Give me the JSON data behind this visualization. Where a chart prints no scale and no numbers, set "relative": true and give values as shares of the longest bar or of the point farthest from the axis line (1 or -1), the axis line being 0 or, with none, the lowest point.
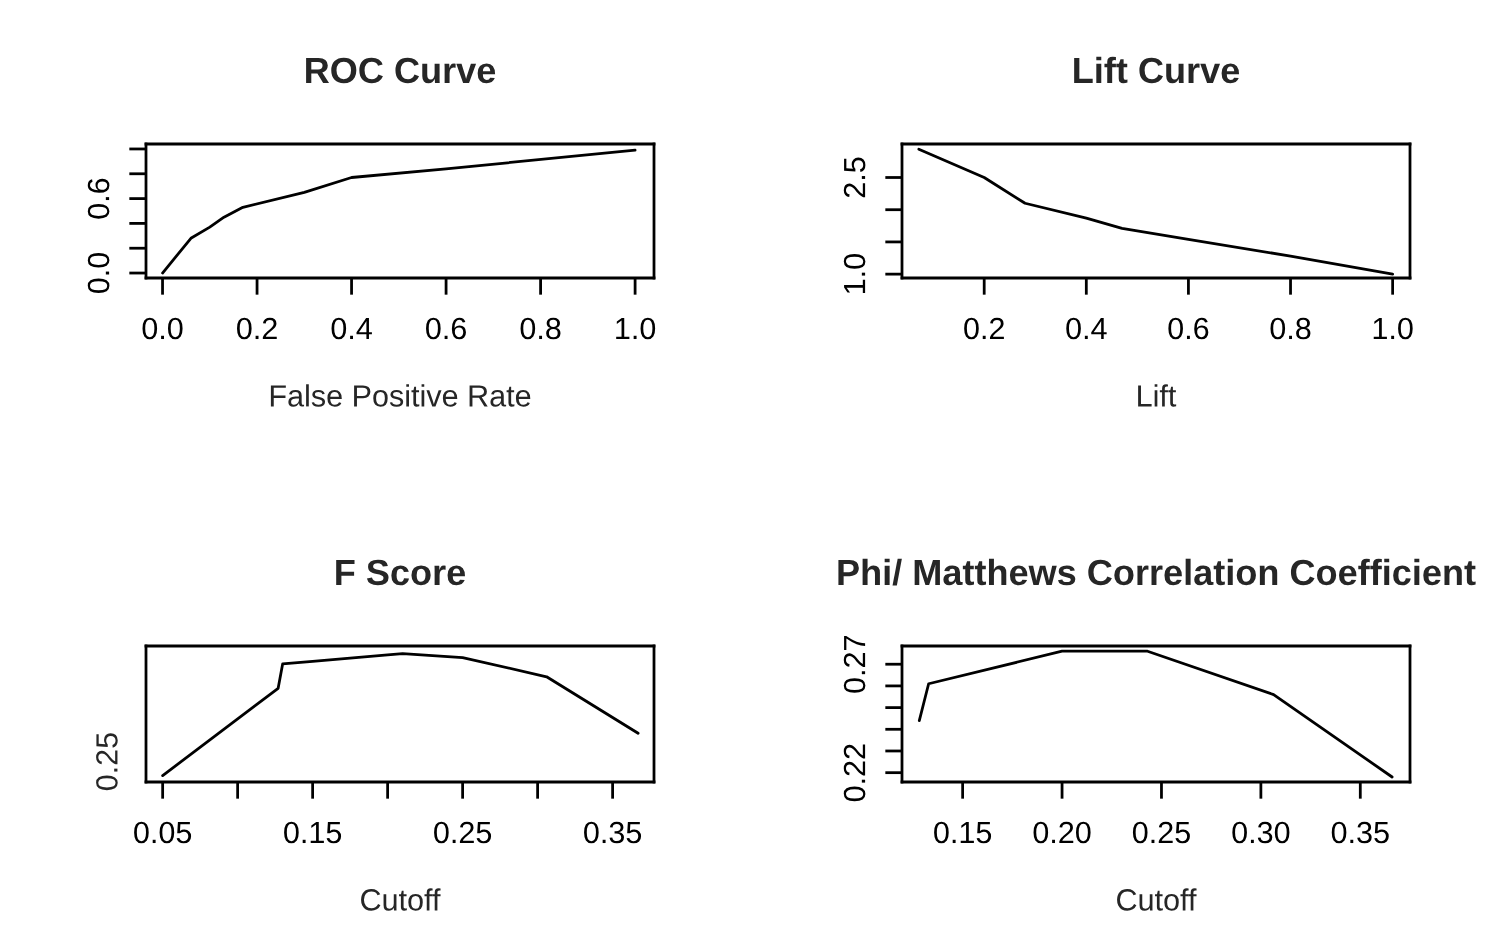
{
  "chart_data": [
    {
      "type": "line",
      "title": "ROC Curve",
      "xlabel": "False Positive Rate",
      "color": "#000000",
      "x": [
        0,
        0.06,
        0.1,
        0.13,
        0.17,
        0.3,
        0.4,
        0.6,
        1.0
      ],
      "values": [
        0,
        0.28,
        0.37,
        0.45,
        0.53,
        0.65,
        0.77,
        0.84,
        0.99
      ],
      "xlim": [
        -0.035,
        1.04
      ],
      "ylim": [
        -0.04,
        1.04
      ],
      "xticks": [
        {
          "value": 0,
          "label": "0.0"
        },
        0.2,
        0.4,
        0.6,
        0.8,
        {
          "value": 1,
          "label": "1.0"
        }
      ],
      "yticks": [
        {
          "value": 0,
          "label": "0.0"
        },
        {
          "value": 0.2,
          "label": null
        },
        {
          "value": 0.4,
          "label": null
        },
        0.6,
        {
          "value": 0.8,
          "label": null
        },
        {
          "value": 1,
          "label": null
        }
      ]
    },
    {
      "type": "line",
      "title": "Lift Curve",
      "xlabel": "Lift",
      "color": "#000000",
      "x": [
        0.072,
        0.2,
        0.28,
        0.4,
        0.47,
        0.6,
        0.8,
        1.0
      ],
      "values": [
        2.94,
        2.5,
        2.1,
        1.87,
        1.71,
        1.54,
        1.28,
        1.0
      ],
      "xlim": [
        0.039,
        1.034
      ],
      "ylim": [
        0.94,
        3.02
      ],
      "xticks": [
        0.2,
        0.4,
        0.6,
        0.8,
        {
          "value": 1,
          "label": "1.0"
        }
      ],
      "yticks": [
        {
          "value": 1,
          "label": "1.0"
        },
        {
          "value": 1.5,
          "label": null
        },
        {
          "value": 2,
          "label": null
        },
        2.5
      ]
    },
    {
      "type": "line",
      "title": "F Score",
      "xlabel": "Cutoff",
      "color": "#000000",
      "x": [
        0.05,
        0.127,
        0.13,
        0.15,
        0.2,
        0.21,
        0.25,
        0.306,
        0.367
      ],
      "values": [
        0.05,
        0.73,
        0.92,
        0.94,
        0.99,
        1,
        0.97,
        0.82,
        0.38
      ],
      "relative": true,
      "annotations": [
        "0.25"
      ],
      "xlim": [
        0.0389,
        0.3776
      ],
      "xticks": [
        0.05,
        {
          "value": 0.1,
          "label": null
        },
        0.15,
        {
          "value": 0.2,
          "label": null
        },
        0.25,
        {
          "value": 0.3,
          "label": null
        },
        0.35
      ]
    },
    {
      "type": "line",
      "title": "Phi/ Matthews Correlation Coefficient",
      "xlabel": "Cutoff",
      "color": "#000000",
      "x": [
        0.1282,
        0.1329,
        0.2,
        0.243,
        0.3064,
        0.366
      ],
      "values": [
        0.244,
        0.261,
        0.276,
        0.276,
        0.256,
        0.218
      ],
      "xlim": [
        0.1195,
        0.375
      ],
      "ylim": [
        0.2157,
        0.2784
      ],
      "xticks": [
        0.15,
        {
          "value": 0.2,
          "label": "0.20"
        },
        0.25,
        {
          "value": 0.3,
          "label": "0.30"
        },
        0.35
      ],
      "yticks": [
        0.22,
        {
          "value": 0.23,
          "label": null
        },
        {
          "value": 0.24,
          "label": null
        },
        {
          "value": 0.25,
          "label": null
        },
        {
          "value": 0.26,
          "label": null
        },
        0.27
      ]
    }
  ]
}
